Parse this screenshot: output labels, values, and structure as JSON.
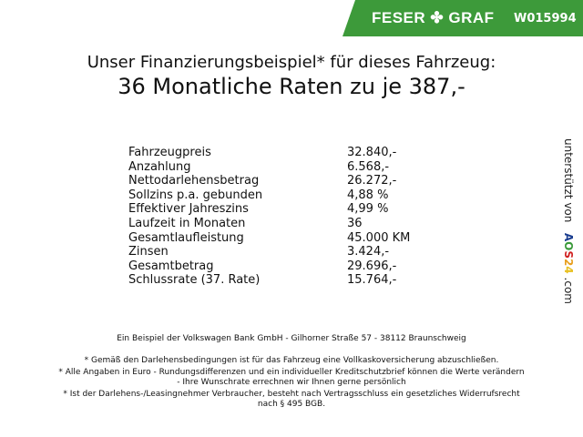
{
  "header": {
    "brand": "FESER ✤ GRAF",
    "code": "W015994"
  },
  "title": {
    "line1": "Unser Finanzierungsbeispiel* für dieses Fahrzeug:",
    "line2": "36 Monatliche Raten zu je 387,-"
  },
  "rows": [
    {
      "label": "Fahrzeugpreis",
      "value": "32.840,-"
    },
    {
      "label": "Anzahlung",
      "value": "6.568,-"
    },
    {
      "label": "Nettodarlehensbetrag",
      "value": "26.272,-"
    },
    {
      "label": "Sollzins p.a. gebunden",
      "value": "4,88 %"
    },
    {
      "label": "Effektiver Jahreszins",
      "value": "4,99 %"
    },
    {
      "label": "Laufzeit in Monaten",
      "value": "36"
    },
    {
      "label": "Gesamtlaufleistung",
      "value": "45.000 KM"
    },
    {
      "label": "Zinsen",
      "value": "3.424,-"
    },
    {
      "label": "Gesamtbetrag",
      "value": "29.696,-"
    },
    {
      "label": "Schlussrate (37. Rate)",
      "value": "15.764,-"
    }
  ],
  "side": {
    "text": "unterstützt von",
    "logo": [
      "A",
      "O",
      "S",
      "2",
      "4"
    ],
    "suffix": ".com",
    "logo_colors": [
      "#1a3d8f",
      "#3a9a3a",
      "#d02020",
      "#e8a020",
      "#e8c020"
    ]
  },
  "footer": {
    "bank": "Ein Beispiel der Volkswagen Bank GmbH - Gilhorner Straße 57 - 38112 Braunschweig",
    "note1": "* Gemäß den Darlehensbedingungen ist für das Fahrzeug eine Vollkaskoversicherung abzuschließen.",
    "note2": "* Alle Angaben in Euro - Rundungsdifferenzen und ein individueller Kreditschutzbrief können die Werte verändern",
    "note2b": "- Ihre Wunschrate errechnen wir Ihnen gerne persönlich",
    "note3": "* Ist der Darlehens-/Leasingnehmer Verbraucher, besteht nach Vertragsschluss ein gesetzliches Widerrufsrecht",
    "note3b": "nach § 495 BGB."
  },
  "colors": {
    "brand_green": "#3d9a3a"
  }
}
